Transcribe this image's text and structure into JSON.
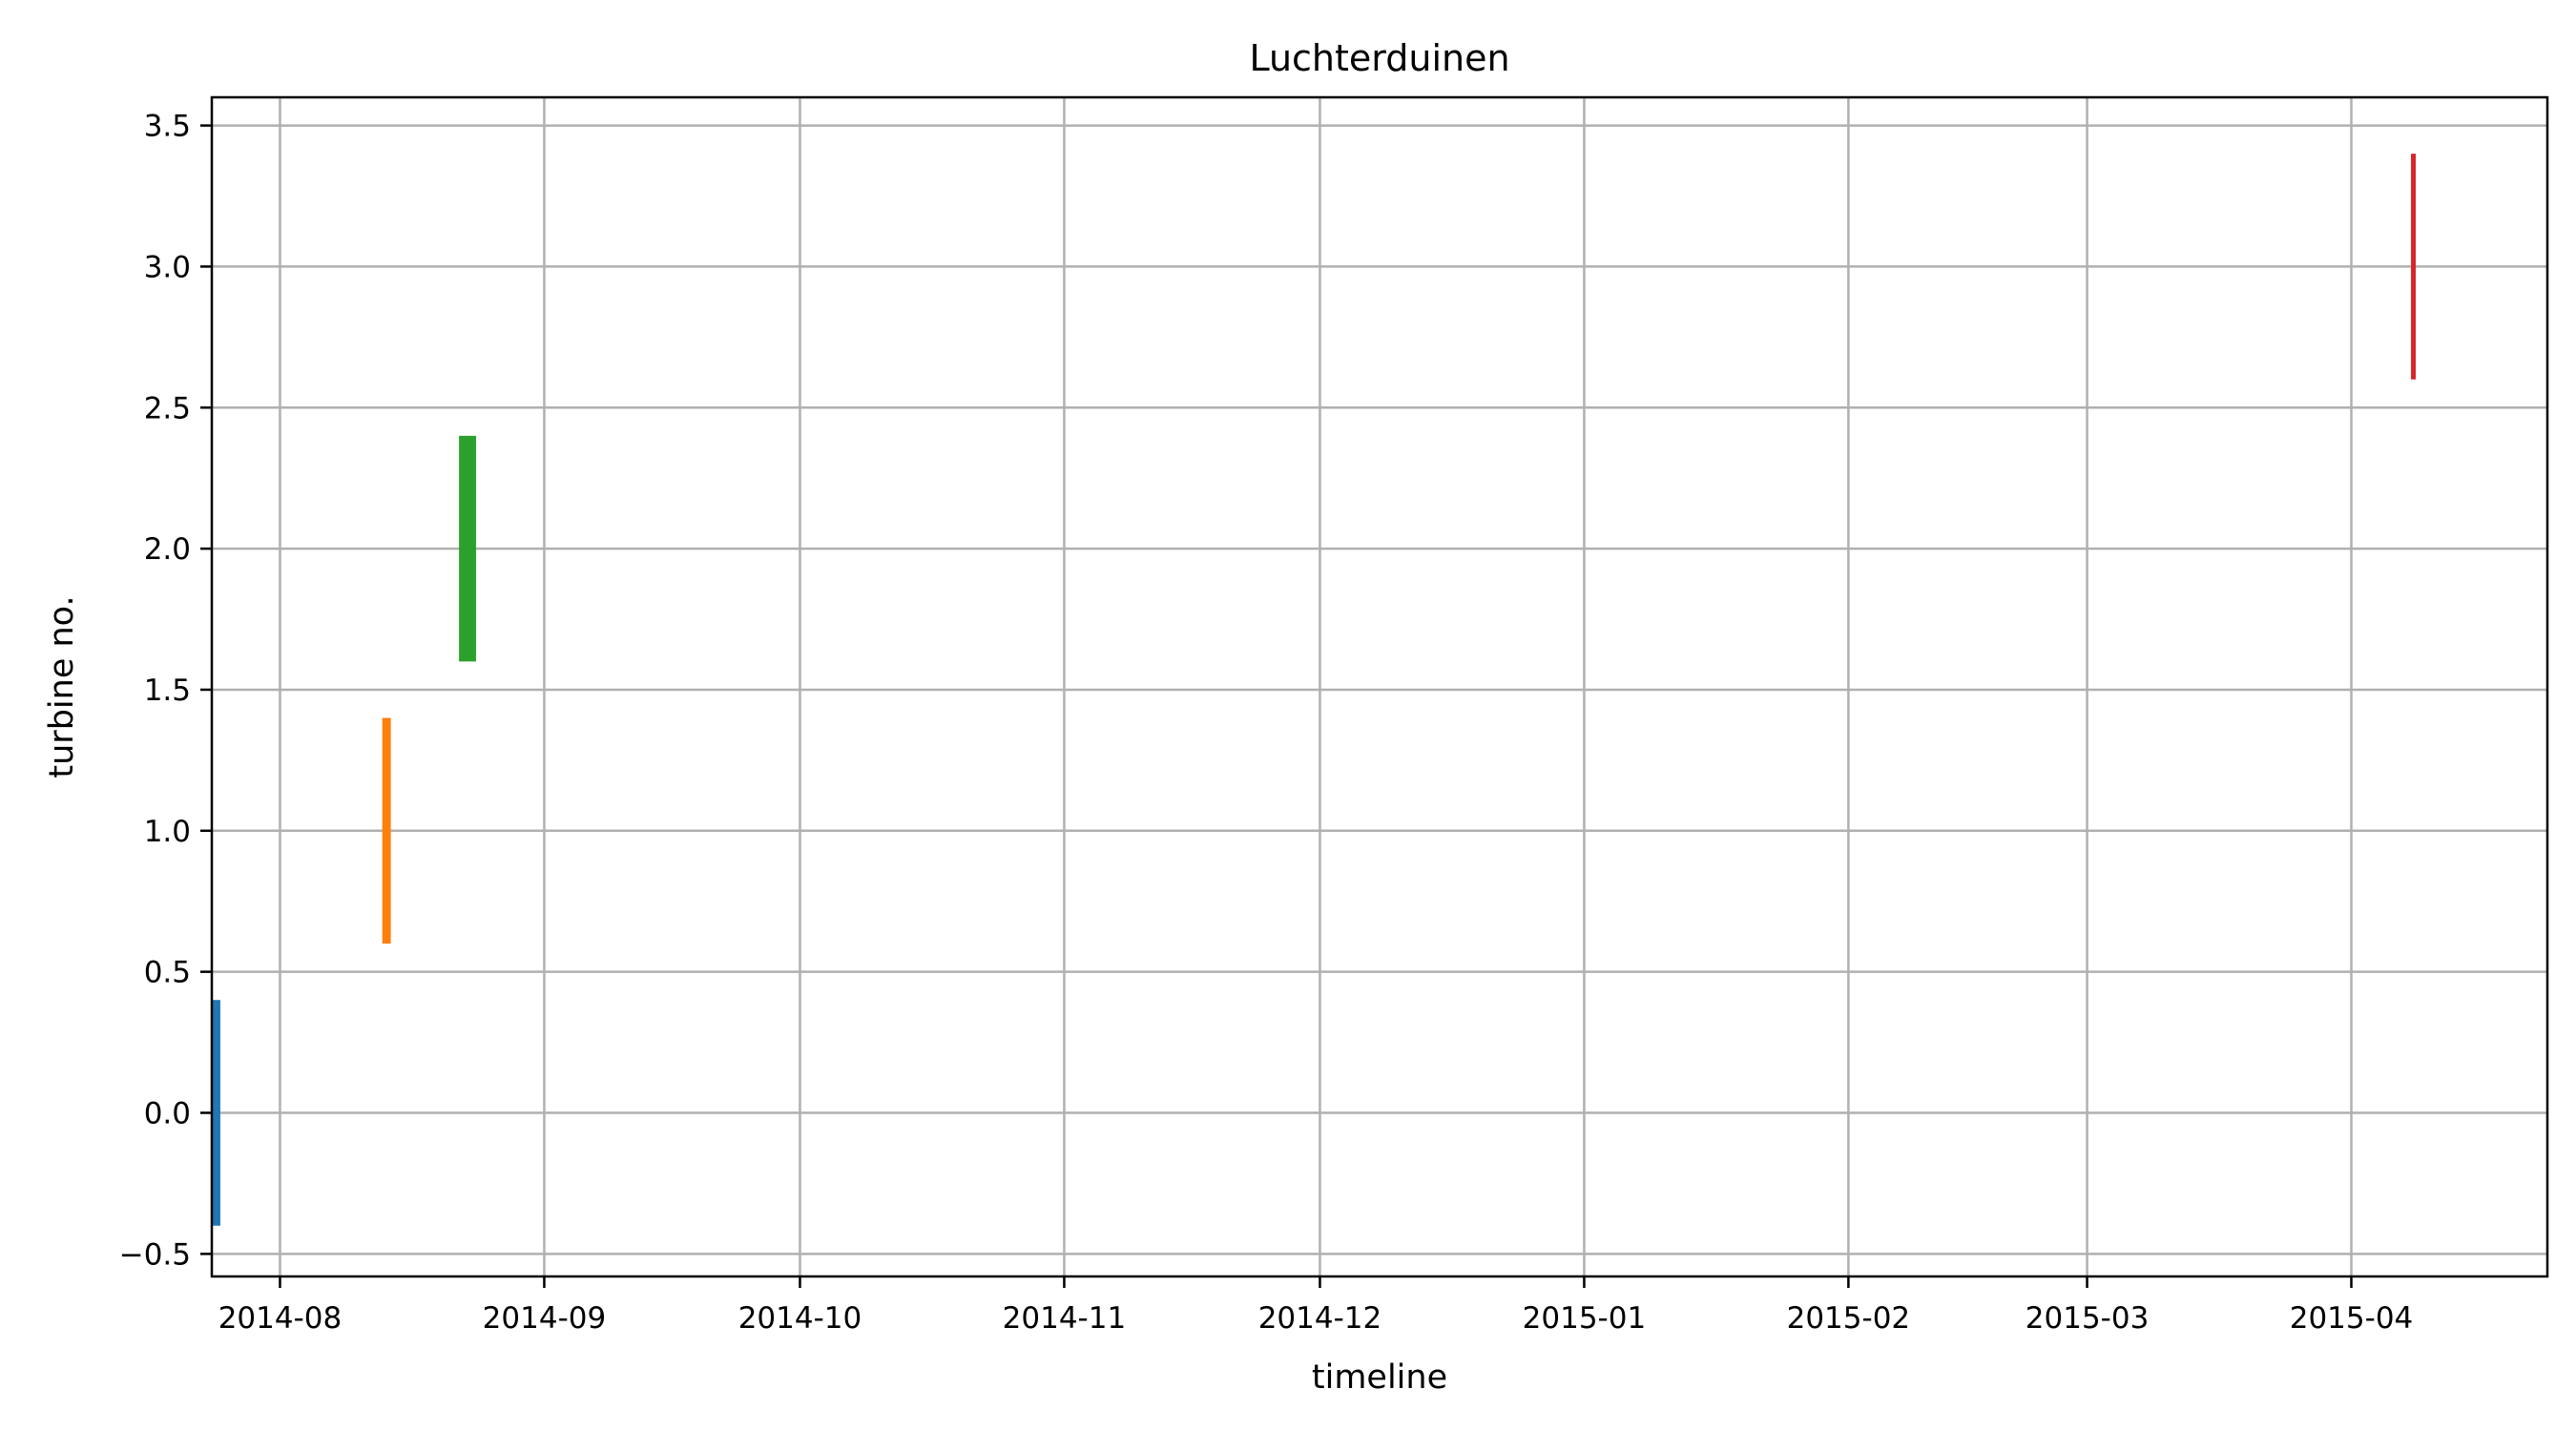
{
  "chart_data": {
    "type": "bar",
    "title": "Luchterduinen",
    "xlabel": "timeline",
    "ylabel": "turbine no.",
    "x_axis_type": "date",
    "xlim": [
      "2014-07-24",
      "2015-04-24"
    ],
    "ylim": [
      -0.58,
      3.6
    ],
    "grid": true,
    "x_ticks": [
      "2014-08-01",
      "2014-09-01",
      "2014-10-01",
      "2014-11-01",
      "2014-12-01",
      "2015-01-01",
      "2015-02-01",
      "2015-03-01",
      "2015-04-01"
    ],
    "x_tick_labels": [
      "2014-08",
      "2014-09",
      "2014-10",
      "2014-11",
      "2014-12",
      "2015-01",
      "2015-02",
      "2015-03",
      "2015-04"
    ],
    "y_ticks": [
      -0.5,
      0.0,
      0.5,
      1.0,
      1.5,
      2.0,
      2.5,
      3.0,
      3.5
    ],
    "y_tick_labels": [
      "−0.5",
      "0.0",
      "0.5",
      "1.0",
      "1.5",
      "2.0",
      "2.5",
      "3.0",
      "3.5"
    ],
    "series": [
      {
        "turbine": 0,
        "start": "2014-07-24",
        "end": "2014-07-25",
        "color": "#1f77b4"
      },
      {
        "turbine": 1,
        "start": "2014-08-13",
        "end": "2014-08-14",
        "color": "#ff7f0e"
      },
      {
        "turbine": 2,
        "start": "2014-08-22",
        "end": "2014-08-24",
        "color": "#2ca02c"
      },
      {
        "turbine": 3,
        "start": "2015-04-08",
        "end": "2015-04-08",
        "color": "#d62728"
      }
    ]
  }
}
